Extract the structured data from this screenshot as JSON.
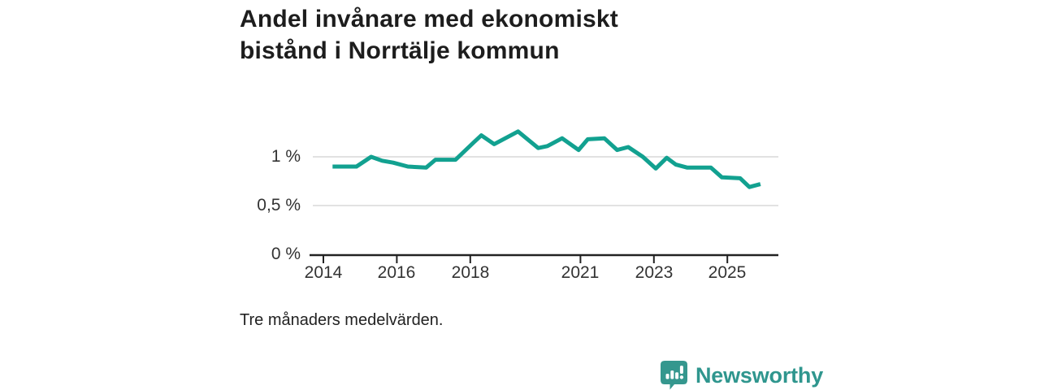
{
  "title": {
    "line1": "Andel invånare med ekonomiskt",
    "line2": "bistånd i Norrtälje kommun"
  },
  "caption": "Tre månaders medelvärden.",
  "logo": {
    "brand": "Newsworthy",
    "icon": "newsworthy-barchart-badge-icon"
  },
  "colors": {
    "line": "#12a190",
    "grid": "#d8d8d8",
    "axis": "#222222",
    "title_text": "#1d1d1d",
    "tick_text": "#333333",
    "brand_teal": "#2f968e"
  },
  "chart_data": {
    "type": "line",
    "title": "Andel invånare med ekonomiskt bistånd i Norrtälje kommun",
    "note": "Tre månaders medelvärden.",
    "xlabel": "",
    "ylabel": "",
    "unit": "%",
    "grid": "horizontal",
    "legend": "none",
    "xlim": [
      2013.6,
      2026.4
    ],
    "ylim": [
      0,
      1.36
    ],
    "x_ticks": [
      {
        "label": "2014",
        "year": 2014
      },
      {
        "label": "2016",
        "year": 2016
      },
      {
        "label": "2018",
        "year": 2018
      },
      {
        "label": "2021",
        "year": 2021
      },
      {
        "label": "2023",
        "year": 2023
      },
      {
        "label": "2025",
        "year": 2025
      }
    ],
    "y_ticks": [
      {
        "label": "1 %",
        "value": 1
      },
      {
        "label": "0,5 %",
        "value": 0.5
      },
      {
        "label": "0 %",
        "value": 0
      }
    ],
    "series": [
      {
        "name": "Andel invånare med ekonomiskt bistånd",
        "points": [
          [
            2014.25,
            0.9
          ],
          [
            2014.6,
            0.9
          ],
          [
            2014.9,
            0.9
          ],
          [
            2015.3,
            1.0
          ],
          [
            2015.6,
            0.96
          ],
          [
            2015.9,
            0.94
          ],
          [
            2016.3,
            0.9
          ],
          [
            2016.8,
            0.89
          ],
          [
            2017.05,
            0.97
          ],
          [
            2017.6,
            0.97
          ],
          [
            2018.1,
            1.15
          ],
          [
            2018.3,
            1.22
          ],
          [
            2018.65,
            1.13
          ],
          [
            2019.3,
            1.26
          ],
          [
            2019.85,
            1.09
          ],
          [
            2020.1,
            1.11
          ],
          [
            2020.5,
            1.19
          ],
          [
            2020.95,
            1.07
          ],
          [
            2021.2,
            1.18
          ],
          [
            2021.65,
            1.19
          ],
          [
            2022.0,
            1.07
          ],
          [
            2022.3,
            1.1
          ],
          [
            2022.7,
            1.0
          ],
          [
            2023.05,
            0.88
          ],
          [
            2023.35,
            0.99
          ],
          [
            2023.6,
            0.92
          ],
          [
            2023.9,
            0.89
          ],
          [
            2024.55,
            0.89
          ],
          [
            2024.85,
            0.79
          ],
          [
            2025.35,
            0.78
          ],
          [
            2025.6,
            0.69
          ],
          [
            2025.9,
            0.72
          ]
        ]
      }
    ]
  }
}
